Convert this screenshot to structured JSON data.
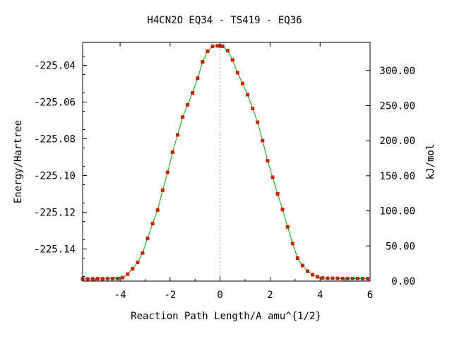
{
  "chart_data": {
    "type": "line",
    "title": "H4CN2O   EQ34 - TS419 - EQ36",
    "xlabel": "Reaction Path Length/A amu^{1/2}",
    "ylabel": "Energy/Hartree",
    "y2label": "kJ/mol",
    "xlim": [
      -5.5,
      6
    ],
    "ylim": [
      -225.1575,
      -225.0275
    ],
    "y2lim": [
      0,
      340
    ],
    "grid": false,
    "ts_marker_x": 0,
    "x_ticks": [
      -4,
      -2,
      0,
      2,
      4,
      6
    ],
    "x_tick_labels": [
      "-4",
      "-2",
      "0",
      "2",
      "4",
      "6"
    ],
    "y_ticks": [
      -225.04,
      -225.06,
      -225.08,
      -225.1,
      -225.12,
      -225.14
    ],
    "y_tick_labels": [
      "-225.04",
      "-225.06",
      "-225.08",
      "-225.10",
      "-225.12",
      "-225.14"
    ],
    "y2_ticks": [
      0,
      50,
      100,
      150,
      200,
      250,
      300
    ],
    "y2_tick_labels": [
      "0.00",
      "50.00",
      "100.00",
      "150.00",
      "200.00",
      "250.00",
      "300.00"
    ],
    "line_color": "#00aa00",
    "marker_color": "#cc2200",
    "series": [
      {
        "x": [
          -5.5,
          -5.3,
          -5.1,
          -4.9,
          -4.7,
          -4.5,
          -4.3,
          -4.1,
          -3.9,
          -3.7,
          -3.5,
          -3.3,
          -3.1,
          -2.9,
          -2.7,
          -2.5,
          -2.3,
          -2.1,
          -1.9,
          -1.7,
          -1.5,
          -1.3,
          -1.1,
          -0.9,
          -0.7,
          -0.5,
          -0.3,
          -0.1,
          0,
          0.1,
          0.3,
          0.5,
          0.7,
          0.9,
          1.1,
          1.3,
          1.5,
          1.7,
          1.9,
          2.1,
          2.3,
          2.5,
          2.7,
          2.9,
          3.1,
          3.3,
          3.5,
          3.7,
          3.9,
          4.1,
          4.3,
          4.5,
          4.7,
          4.9,
          5.1,
          5.3,
          5.5,
          5.7,
          5.9
        ],
        "y": [
          -225.1563,
          -225.1563,
          -225.1563,
          -225.1562,
          -225.1563,
          -225.1562,
          -225.1562,
          -225.1561,
          -225.1556,
          -225.1537,
          -225.1508,
          -225.1473,
          -225.1422,
          -225.1342,
          -225.1262,
          -225.1188,
          -225.108,
          -225.0983,
          -225.0873,
          -225.0779,
          -225.0682,
          -225.0615,
          -225.055,
          -225.047,
          -225.0381,
          -225.0323,
          -225.0297,
          -225.0294,
          -225.0295,
          -225.0296,
          -225.032,
          -225.037,
          -225.044,
          -225.0499,
          -225.056,
          -225.0635,
          -225.071,
          -225.081,
          -225.092,
          -225.101,
          -225.11,
          -225.1185,
          -225.128,
          -225.137,
          -225.145,
          -225.149,
          -225.1521,
          -225.154,
          -225.1552,
          -225.1558,
          -225.156,
          -225.156,
          -225.156,
          -225.1561,
          -225.1561,
          -225.1561,
          -225.1561,
          -225.1562,
          -225.1562
        ]
      }
    ]
  }
}
